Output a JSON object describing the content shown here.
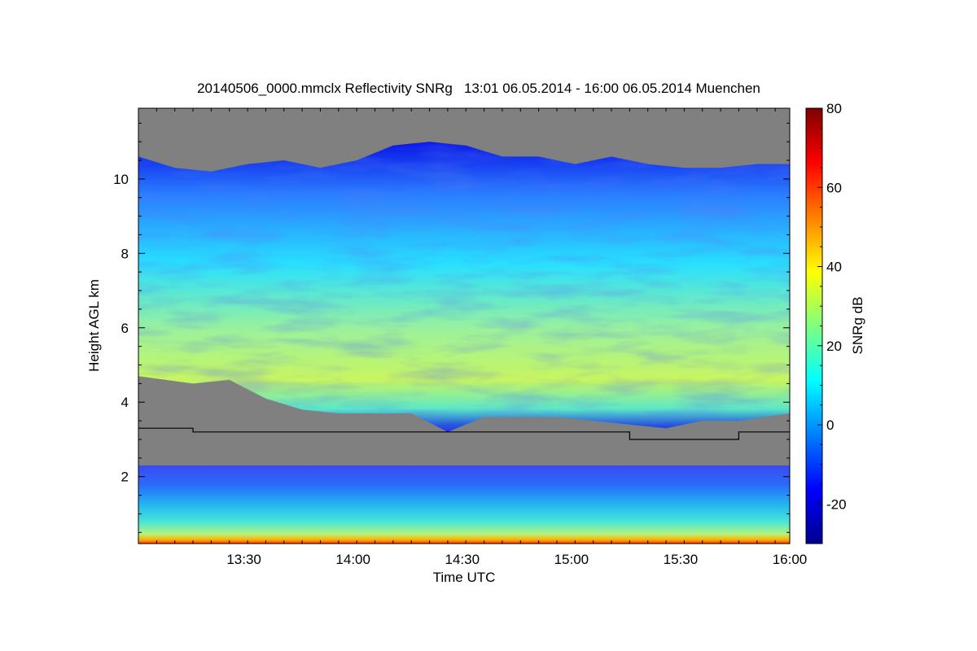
{
  "chart_data": {
    "type": "heatmap",
    "title": "20140506_0000.mmclx Reflectivity SNRg   13:01 06.05.2014 - 16:00 06.05.2014 Muenchen",
    "xlabel": "Time UTC",
    "ylabel": "Height AGL km",
    "x_range": [
      "13:01",
      "16:00"
    ],
    "x_ticks": [
      "13:30",
      "14:00",
      "14:30",
      "15:00",
      "15:30",
      "16:00"
    ],
    "x_tick_minutes": [
      29,
      59,
      89,
      119,
      149,
      179
    ],
    "x_span_minutes": 179,
    "ylim": [
      0.2,
      11.9
    ],
    "y_ticks": [
      2,
      4,
      6,
      8,
      10
    ],
    "colorbar": {
      "label": "SNRg dB",
      "range": [
        -30,
        80
      ],
      "ticks": [
        -20,
        0,
        20,
        40,
        60,
        80
      ],
      "colormap": "jet"
    },
    "no_data_color": "#808080",
    "cloud_top_km": [
      [
        0,
        10.6
      ],
      [
        10,
        10.3
      ],
      [
        20,
        10.2
      ],
      [
        30,
        10.4
      ],
      [
        40,
        10.5
      ],
      [
        50,
        10.3
      ],
      [
        60,
        10.5
      ],
      [
        70,
        10.9
      ],
      [
        80,
        11.0
      ],
      [
        90,
        10.9
      ],
      [
        100,
        10.6
      ],
      [
        110,
        10.6
      ],
      [
        120,
        10.4
      ],
      [
        130,
        10.6
      ],
      [
        140,
        10.4
      ],
      [
        150,
        10.3
      ],
      [
        160,
        10.3
      ],
      [
        170,
        10.4
      ],
      [
        179,
        10.4
      ]
    ],
    "cloud_base_km": [
      [
        0,
        4.7
      ],
      [
        15,
        4.5
      ],
      [
        25,
        4.6
      ],
      [
        35,
        4.1
      ],
      [
        45,
        3.8
      ],
      [
        55,
        3.7
      ],
      [
        65,
        3.7
      ],
      [
        75,
        3.7
      ],
      [
        85,
        3.2
      ],
      [
        95,
        3.6
      ],
      [
        105,
        3.6
      ],
      [
        115,
        3.6
      ],
      [
        125,
        3.5
      ],
      [
        135,
        3.4
      ],
      [
        145,
        3.3
      ],
      [
        155,
        3.5
      ],
      [
        165,
        3.5
      ],
      [
        179,
        3.7
      ]
    ],
    "black_line_km": [
      [
        0,
        3.3
      ],
      [
        15,
        3.3
      ],
      [
        15,
        3.2
      ],
      [
        135,
        3.2
      ],
      [
        135,
        3.0
      ],
      [
        165,
        3.0
      ],
      [
        165,
        3.2
      ],
      [
        179,
        3.2
      ]
    ]
  }
}
